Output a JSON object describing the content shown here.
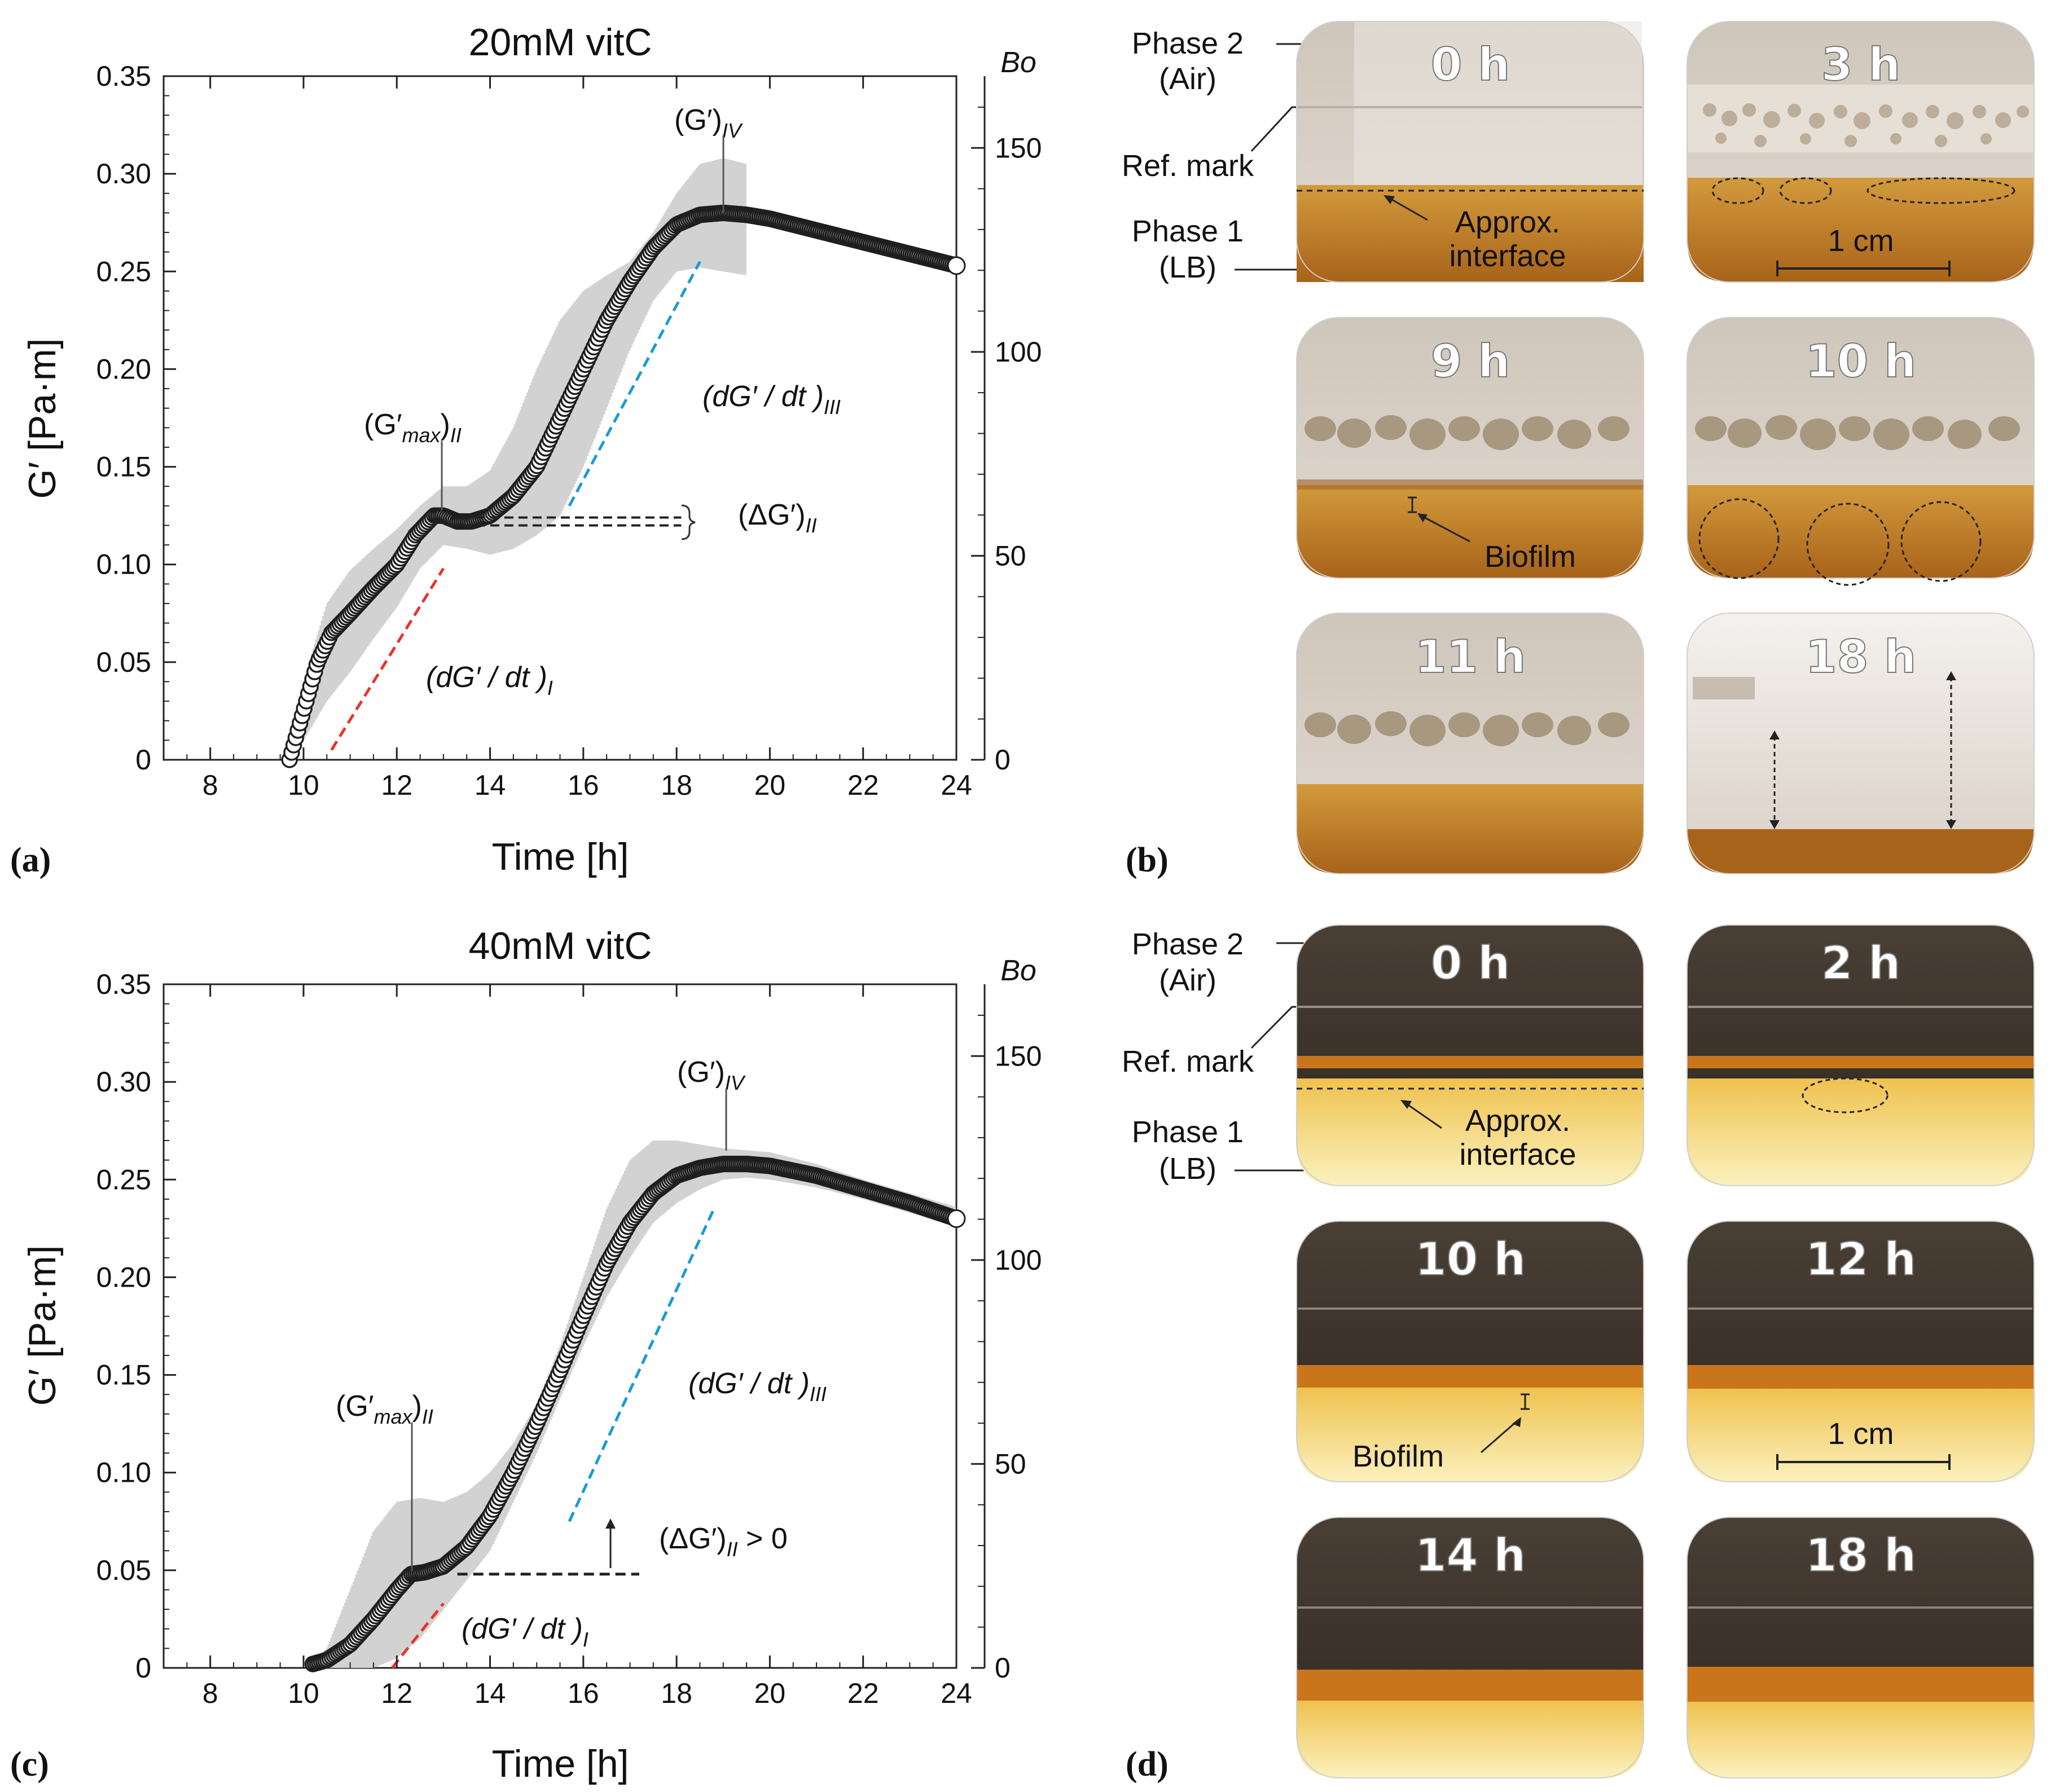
{
  "chart_data": [
    {
      "type": "scatter",
      "title": "20mM vitC",
      "xlabel": "Time [h]",
      "ylabel": "G′ [Pa·m]",
      "y2label": "Bo",
      "xlim": [
        7,
        24
      ],
      "ylim": [
        0,
        0.35
      ],
      "y2lim": [
        0,
        167.6
      ],
      "xticks": [
        "8",
        "10",
        "12",
        "14",
        "16",
        "18",
        "20",
        "22",
        "24"
      ],
      "yticks": [
        "0",
        "0.05",
        "0.10",
        "0.15",
        "0.20",
        "0.25",
        "0.30",
        "0.35"
      ],
      "y2ticks": [
        "0",
        "50",
        "100",
        "150"
      ],
      "series": [
        {
          "name": "G′ mean",
          "x": [
            9.7,
            10.0,
            10.3,
            10.6,
            11.0,
            11.5,
            12.0,
            12.4,
            12.8,
            13.0,
            13.3,
            13.6,
            14.0,
            14.5,
            15.0,
            15.5,
            16.0,
            16.5,
            17.0,
            17.5,
            18.0,
            18.5,
            19.0,
            19.5,
            20.0,
            21.0,
            22.0,
            23.0,
            24.0
          ],
          "y": [
            0.0,
            0.025,
            0.05,
            0.065,
            0.075,
            0.088,
            0.1,
            0.115,
            0.125,
            0.125,
            0.122,
            0.122,
            0.125,
            0.135,
            0.15,
            0.175,
            0.2,
            0.225,
            0.245,
            0.262,
            0.274,
            0.279,
            0.28,
            0.279,
            0.277,
            0.271,
            0.265,
            0.259,
            0.253
          ]
        },
        {
          "name": "std upper",
          "x": [
            9.7,
            10.0,
            10.5,
            11.0,
            11.5,
            12.0,
            12.5,
            13.0,
            13.5,
            14.0,
            14.5,
            15.0,
            15.5,
            16.0,
            16.5,
            17.0,
            17.5,
            18.0,
            18.5,
            19.0,
            19.5
          ],
          "y": [
            0.005,
            0.04,
            0.08,
            0.097,
            0.108,
            0.118,
            0.13,
            0.14,
            0.14,
            0.148,
            0.17,
            0.2,
            0.225,
            0.24,
            0.248,
            0.255,
            0.27,
            0.29,
            0.305,
            0.308,
            0.305
          ]
        },
        {
          "name": "std lower",
          "x": [
            9.7,
            10.0,
            10.5,
            11.0,
            11.5,
            12.0,
            12.5,
            13.0,
            13.5,
            14.0,
            14.5,
            15.0,
            15.5,
            16.0,
            16.5,
            17.0,
            17.5,
            18.0,
            18.5,
            19.0,
            19.5
          ],
          "y": [
            0.0,
            0.01,
            0.03,
            0.045,
            0.062,
            0.078,
            0.098,
            0.11,
            0.108,
            0.105,
            0.108,
            0.115,
            0.125,
            0.15,
            0.18,
            0.21,
            0.235,
            0.25,
            0.252,
            0.25,
            0.248
          ]
        }
      ],
      "fit_lines": [
        {
          "name": "(dG′/dt)I",
          "color": "#e8332a",
          "x": [
            10.6,
            13.0
          ],
          "y": [
            0.005,
            0.098
          ]
        },
        {
          "name": "(dG′/dt)III",
          "color": "#1a9ad6",
          "x": [
            15.7,
            18.5
          ],
          "y": [
            0.13,
            0.255
          ]
        },
        {
          "name": "(ΔG′)II",
          "color": "#222222",
          "x": [
            13.4,
            18.1
          ],
          "y": [
            0.122,
            0.122
          ],
          "double": true
        }
      ],
      "end_marker": {
        "x": 24.0,
        "y": 0.253
      },
      "annotations": {
        "g4": {
          "lead": "(G′)",
          "sub": "IV"
        },
        "gmax": {
          "lead": "(G′",
          "mid": "max",
          "close": ")",
          "sub": "II"
        },
        "rate3": {
          "lead": "(dG′ / dt )",
          "sub": "III"
        },
        "dg": {
          "lead": "(ΔG′)",
          "sub": "II",
          "trail": ""
        },
        "rate1": {
          "lead": "(dG′ / dt )",
          "sub": "I"
        }
      },
      "panel_label": "(a)"
    },
    {
      "type": "scatter",
      "title": "40mM vitC",
      "xlabel": "Time [h]",
      "ylabel": "G′ [Pa·m]",
      "y2label": "Bo",
      "xlim": [
        7,
        24
      ],
      "ylim": [
        0,
        0.35
      ],
      "y2lim": [
        0,
        167.6
      ],
      "xticks": [
        "8",
        "10",
        "12",
        "14",
        "16",
        "18",
        "20",
        "22",
        "24"
      ],
      "yticks": [
        "0",
        "0.05",
        "0.10",
        "0.15",
        "0.20",
        "0.25",
        "0.30",
        "0.35"
      ],
      "y2ticks": [
        "0",
        "50",
        "100",
        "150"
      ],
      "series": [
        {
          "name": "G′ mean",
          "x": [
            10.2,
            10.5,
            11.0,
            11.5,
            12.0,
            12.3,
            12.6,
            13.0,
            13.5,
            14.0,
            14.5,
            15.0,
            15.5,
            16.0,
            16.5,
            17.0,
            17.5,
            18.0,
            18.5,
            19.0,
            19.5,
            20.0,
            21.0,
            22.0,
            23.0,
            24.0
          ],
          "y": [
            0.002,
            0.004,
            0.012,
            0.025,
            0.04,
            0.048,
            0.049,
            0.052,
            0.062,
            0.078,
            0.1,
            0.125,
            0.152,
            0.18,
            0.207,
            0.228,
            0.243,
            0.252,
            0.256,
            0.258,
            0.258,
            0.257,
            0.252,
            0.245,
            0.238,
            0.23
          ]
        },
        {
          "name": "std upper",
          "x": [
            10.2,
            10.5,
            11.0,
            11.5,
            12.0,
            12.5,
            13.0,
            13.5,
            14.0,
            14.5,
            15.0,
            15.5,
            16.0,
            16.5,
            17.0,
            17.5,
            18.0,
            18.5,
            19.0,
            19.5,
            20.0,
            21.0,
            22.0,
            23.0,
            24.0
          ],
          "y": [
            0.004,
            0.01,
            0.04,
            0.07,
            0.085,
            0.087,
            0.085,
            0.09,
            0.1,
            0.115,
            0.135,
            0.165,
            0.2,
            0.235,
            0.26,
            0.27,
            0.27,
            0.268,
            0.266,
            0.265,
            0.264,
            0.258,
            0.25,
            0.243,
            0.236
          ]
        },
        {
          "name": "std lower",
          "x": [
            10.2,
            10.5,
            11.0,
            11.5,
            12.0,
            12.5,
            13.0,
            13.5,
            14.0,
            14.5,
            15.0,
            15.5,
            16.0,
            16.5,
            17.0,
            17.5,
            18.0,
            18.5,
            19.0,
            19.5,
            20.0,
            21.0,
            22.0,
            23.0,
            24.0
          ],
          "y": [
            0.0,
            0.0,
            0.0,
            0.0,
            0.005,
            0.015,
            0.03,
            0.045,
            0.06,
            0.085,
            0.11,
            0.138,
            0.165,
            0.19,
            0.21,
            0.228,
            0.238,
            0.245,
            0.25,
            0.251,
            0.25,
            0.246,
            0.24,
            0.233,
            0.226
          ]
        }
      ],
      "fit_lines": [
        {
          "name": "(dG′/dt)I",
          "color": "#e8332a",
          "x": [
            11.9,
            13.0
          ],
          "y": [
            0.0,
            0.033
          ]
        },
        {
          "name": "(dG′/dt)III",
          "color": "#1a9ad6",
          "x": [
            15.7,
            18.8
          ],
          "y": [
            0.075,
            0.235
          ]
        },
        {
          "name": "(ΔG′)II",
          "color": "#222222",
          "x": [
            13.3,
            17.2
          ],
          "y": [
            0.048,
            0.048
          ],
          "double": false
        }
      ],
      "end_marker": {
        "x": 24.0,
        "y": 0.23
      },
      "annotations": {
        "g4": {
          "lead": "(G′)",
          "sub": "IV"
        },
        "gmax": {
          "lead": "(G′",
          "mid": "max",
          "close": ")",
          "sub": "II"
        },
        "rate3": {
          "lead": "(dG′ / dt )",
          "sub": "III"
        },
        "dg": {
          "lead": "(ΔG′)",
          "sub": "II",
          "trail": " > 0"
        },
        "rate1": {
          "lead": "(dG′ / dt )",
          "sub": "I"
        }
      },
      "panel_label": "(c)"
    }
  ],
  "panel_b": {
    "panel_label": "(b)",
    "times": [
      "0 h",
      "3 h",
      "9 h",
      "10 h",
      "11 h",
      "18 h"
    ],
    "labels": {
      "phase2": "Phase 2",
      "phase2_sub": "(Air)",
      "ref_mark": "Ref. mark",
      "phase1": "Phase 1",
      "phase1_sub": "(LB)",
      "interface_1": "Approx.",
      "interface_2": "interface",
      "scale": "1 cm",
      "biofilm": "Biofilm"
    },
    "colors": {
      "liquid": "#c98a2e",
      "liquid_dark": "#a8631a",
      "air": "#d6cfc6",
      "foam": "#efece8"
    }
  },
  "panel_d": {
    "panel_label": "(d)",
    "times": [
      "0 h",
      "2 h",
      "10 h",
      "12 h",
      "14 h",
      "18 h"
    ],
    "labels": {
      "phase2": "Phase 2",
      "phase2_sub": "(Air)",
      "ref_mark": "Ref. mark",
      "phase1": "Phase 1",
      "phase1_sub": "(LB)",
      "interface_1": "Approx.",
      "interface_2": "interface",
      "scale": "1 cm",
      "biofilm": "Biofilm"
    },
    "colors": {
      "air": "#3b3128",
      "band": "#c8751c",
      "liquid": "#f2d36b",
      "liquid_light": "#fbf0b8"
    }
  }
}
